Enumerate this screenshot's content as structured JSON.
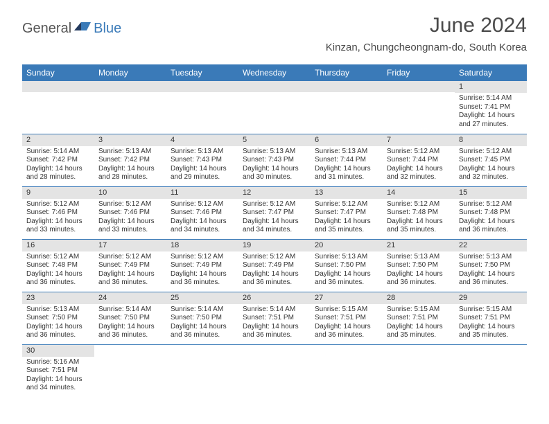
{
  "logo": {
    "general": "General",
    "blue": "Blue"
  },
  "title": {
    "month": "June 2024",
    "location": "Kinzan, Chungcheongnam-do, South Korea"
  },
  "colors": {
    "headerBg": "#3a7ab8",
    "headerText": "#ffffff",
    "dayBarBg": "#e4e4e4",
    "ruleColor": "#3a7ab8"
  },
  "dayNames": [
    "Sunday",
    "Monday",
    "Tuesday",
    "Wednesday",
    "Thursday",
    "Friday",
    "Saturday"
  ],
  "startWeekday": 6,
  "days": [
    {
      "n": 1,
      "sunrise": "5:14 AM",
      "sunset": "7:41 PM",
      "dayH": 14,
      "dayM": 27
    },
    {
      "n": 2,
      "sunrise": "5:14 AM",
      "sunset": "7:42 PM",
      "dayH": 14,
      "dayM": 28
    },
    {
      "n": 3,
      "sunrise": "5:13 AM",
      "sunset": "7:42 PM",
      "dayH": 14,
      "dayM": 28
    },
    {
      "n": 4,
      "sunrise": "5:13 AM",
      "sunset": "7:43 PM",
      "dayH": 14,
      "dayM": 29
    },
    {
      "n": 5,
      "sunrise": "5:13 AM",
      "sunset": "7:43 PM",
      "dayH": 14,
      "dayM": 30
    },
    {
      "n": 6,
      "sunrise": "5:13 AM",
      "sunset": "7:44 PM",
      "dayH": 14,
      "dayM": 31
    },
    {
      "n": 7,
      "sunrise": "5:12 AM",
      "sunset": "7:44 PM",
      "dayH": 14,
      "dayM": 32
    },
    {
      "n": 8,
      "sunrise": "5:12 AM",
      "sunset": "7:45 PM",
      "dayH": 14,
      "dayM": 32
    },
    {
      "n": 9,
      "sunrise": "5:12 AM",
      "sunset": "7:46 PM",
      "dayH": 14,
      "dayM": 33
    },
    {
      "n": 10,
      "sunrise": "5:12 AM",
      "sunset": "7:46 PM",
      "dayH": 14,
      "dayM": 33
    },
    {
      "n": 11,
      "sunrise": "5:12 AM",
      "sunset": "7:46 PM",
      "dayH": 14,
      "dayM": 34
    },
    {
      "n": 12,
      "sunrise": "5:12 AM",
      "sunset": "7:47 PM",
      "dayH": 14,
      "dayM": 34
    },
    {
      "n": 13,
      "sunrise": "5:12 AM",
      "sunset": "7:47 PM",
      "dayH": 14,
      "dayM": 35
    },
    {
      "n": 14,
      "sunrise": "5:12 AM",
      "sunset": "7:48 PM",
      "dayH": 14,
      "dayM": 35
    },
    {
      "n": 15,
      "sunrise": "5:12 AM",
      "sunset": "7:48 PM",
      "dayH": 14,
      "dayM": 36
    },
    {
      "n": 16,
      "sunrise": "5:12 AM",
      "sunset": "7:48 PM",
      "dayH": 14,
      "dayM": 36
    },
    {
      "n": 17,
      "sunrise": "5:12 AM",
      "sunset": "7:49 PM",
      "dayH": 14,
      "dayM": 36
    },
    {
      "n": 18,
      "sunrise": "5:12 AM",
      "sunset": "7:49 PM",
      "dayH": 14,
      "dayM": 36
    },
    {
      "n": 19,
      "sunrise": "5:12 AM",
      "sunset": "7:49 PM",
      "dayH": 14,
      "dayM": 36
    },
    {
      "n": 20,
      "sunrise": "5:13 AM",
      "sunset": "7:50 PM",
      "dayH": 14,
      "dayM": 36
    },
    {
      "n": 21,
      "sunrise": "5:13 AM",
      "sunset": "7:50 PM",
      "dayH": 14,
      "dayM": 36
    },
    {
      "n": 22,
      "sunrise": "5:13 AM",
      "sunset": "7:50 PM",
      "dayH": 14,
      "dayM": 36
    },
    {
      "n": 23,
      "sunrise": "5:13 AM",
      "sunset": "7:50 PM",
      "dayH": 14,
      "dayM": 36
    },
    {
      "n": 24,
      "sunrise": "5:14 AM",
      "sunset": "7:50 PM",
      "dayH": 14,
      "dayM": 36
    },
    {
      "n": 25,
      "sunrise": "5:14 AM",
      "sunset": "7:50 PM",
      "dayH": 14,
      "dayM": 36
    },
    {
      "n": 26,
      "sunrise": "5:14 AM",
      "sunset": "7:51 PM",
      "dayH": 14,
      "dayM": 36
    },
    {
      "n": 27,
      "sunrise": "5:15 AM",
      "sunset": "7:51 PM",
      "dayH": 14,
      "dayM": 36
    },
    {
      "n": 28,
      "sunrise": "5:15 AM",
      "sunset": "7:51 PM",
      "dayH": 14,
      "dayM": 35
    },
    {
      "n": 29,
      "sunrise": "5:15 AM",
      "sunset": "7:51 PM",
      "dayH": 14,
      "dayM": 35
    },
    {
      "n": 30,
      "sunrise": "5:16 AM",
      "sunset": "7:51 PM",
      "dayH": 14,
      "dayM": 34
    }
  ],
  "labels": {
    "sunrise": "Sunrise:",
    "sunset": "Sunset:",
    "daylight": "Daylight:",
    "hours": "hours",
    "and": "and",
    "minutes": "minutes."
  }
}
